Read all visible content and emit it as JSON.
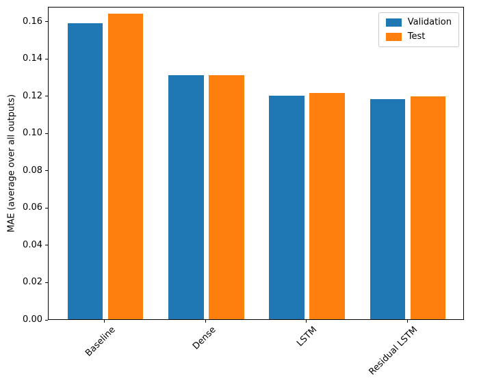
{
  "chart_data": {
    "type": "bar",
    "categories": [
      "Baseline",
      "Dense",
      "LSTM",
      "Residual LSTM"
    ],
    "series": [
      {
        "name": "Validation",
        "color": "#1f77b4",
        "values": [
          0.159,
          0.131,
          0.12,
          0.118
        ]
      },
      {
        "name": "Test",
        "color": "#ff7f0e",
        "values": [
          0.164,
          0.131,
          0.1215,
          0.1195
        ]
      }
    ],
    "title": "",
    "xlabel": "",
    "ylabel": "MAE (average over all outputs)",
    "ylim": [
      0,
      0.168
    ],
    "yticks": [
      0.0,
      0.02,
      0.04,
      0.06,
      0.08,
      0.1,
      0.12,
      0.14,
      0.16
    ],
    "ytick_labels": [
      "0.00",
      "0.02",
      "0.04",
      "0.06",
      "0.08",
      "0.10",
      "0.12",
      "0.14",
      "0.16"
    ],
    "grid": false,
    "legend_position": "upper right",
    "xtick_rotation": 45
  }
}
